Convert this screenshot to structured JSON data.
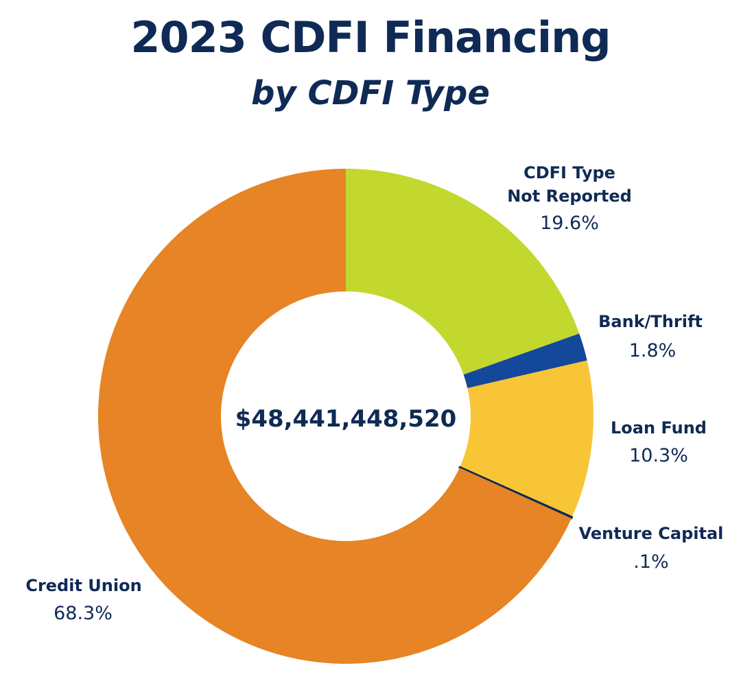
{
  "chart_data": {
    "type": "pie",
    "style": "donut",
    "title": "2023 CDFI Financing",
    "subtitle": "by CDFI Type",
    "center_label": "$48,441,448,520",
    "slices": [
      {
        "id": "not-reported",
        "name_lines": [
          "CDFI Type",
          "Not Reported"
        ],
        "value": 19.6,
        "label": "19.6%",
        "color": "#c2d82e"
      },
      {
        "id": "bank-thrift",
        "name_lines": [
          "Bank/Thrift"
        ],
        "value": 1.8,
        "label": "1.8%",
        "color": "#14489a"
      },
      {
        "id": "loan-fund",
        "name_lines": [
          "Loan Fund"
        ],
        "value": 10.3,
        "label": "10.3%",
        "color": "#f7c536"
      },
      {
        "id": "venture-capital",
        "name_lines": [
          "Venture Capital"
        ],
        "value": 0.1,
        "label": ".1%",
        "color": "#0f2a55"
      },
      {
        "id": "credit-union",
        "name_lines": [
          "Credit Union"
        ],
        "value": 68.3,
        "label": "68.3%",
        "color": "#e68426"
      }
    ]
  }
}
